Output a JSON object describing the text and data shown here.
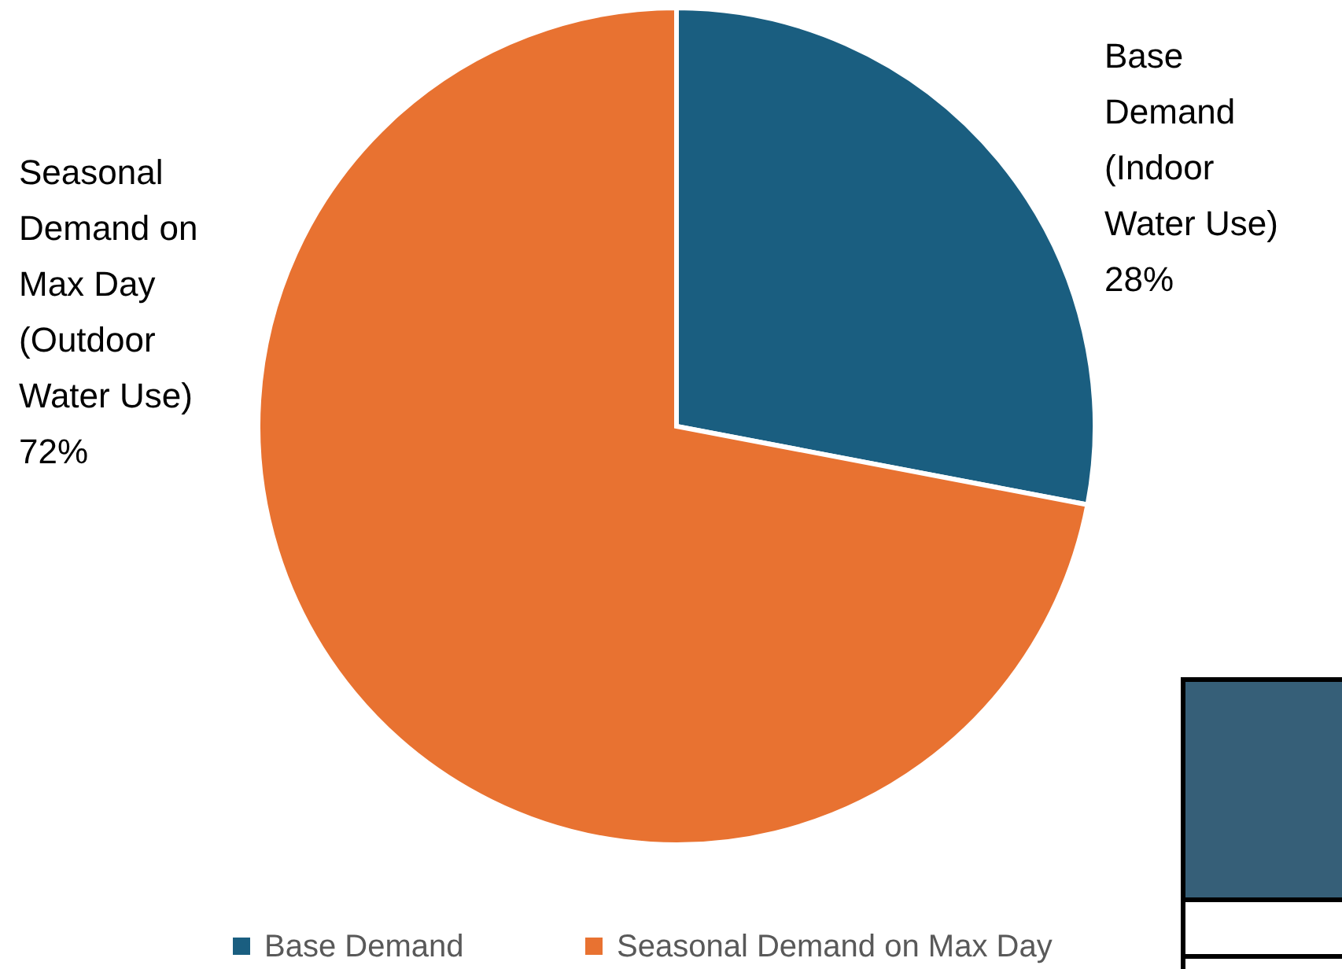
{
  "chart_data": {
    "type": "pie",
    "categories": [
      "Base Demand",
      "Seasonal Demand on Max Day"
    ],
    "values": [
      28,
      72
    ],
    "colors": [
      "#1a5e80",
      "#e87231"
    ],
    "value_labels": [
      "Base Demand (Indoor Water Use) 28%",
      "Seasonal Demand on Max Day (Outdoor Water Use) 72%"
    ],
    "legend": "bottom"
  }
}
